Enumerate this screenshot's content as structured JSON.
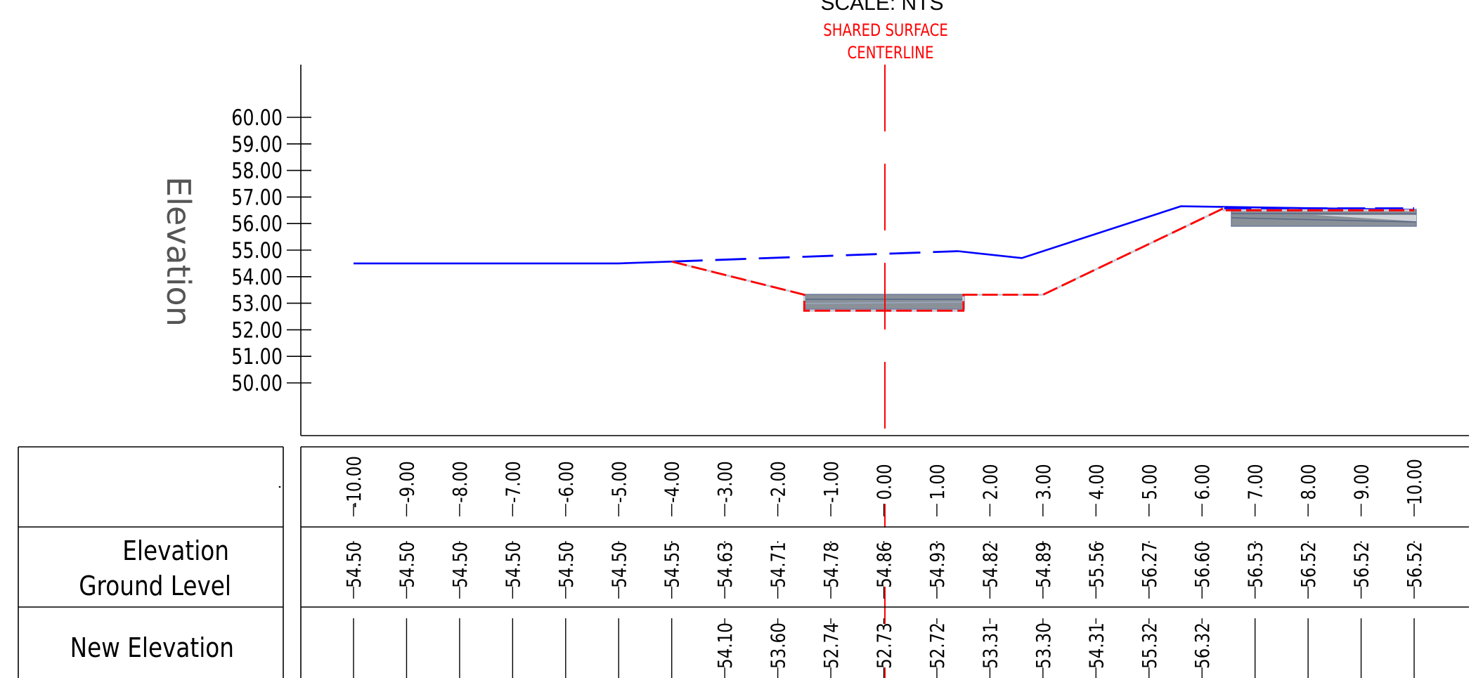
{
  "drawing": {
    "scale_label": "SCALE: NTS",
    "centerline_label_line1": "SHARED SURFACE",
    "centerline_label_line2": "CENTERLINE",
    "y_axis_title": "Elevation",
    "row_label_ground_1": "Elevation",
    "row_label_ground_2": "Ground Level",
    "row_label_new": "New Elevation",
    "colors": {
      "existing_ground": "#0000ff",
      "proposed_grade": "#ff0000",
      "centerline": "#ff0000",
      "surface_fill": "#8a9098",
      "linework": "#000000"
    }
  },
  "chart_data": {
    "type": "line",
    "title": "",
    "xlabel": "",
    "ylabel": "Elevation",
    "xlim": [
      -10,
      10
    ],
    "ylim": [
      50,
      60
    ],
    "y_ticks": [
      "60.00",
      "59.00",
      "58.00",
      "57.00",
      "56.00",
      "55.00",
      "54.00",
      "53.00",
      "52.00",
      "51.00",
      "50.00"
    ],
    "offsets": [
      "-10.00",
      "-9.00",
      "-8.00",
      "-7.00",
      "-6.00",
      "-5.00",
      "-4.00",
      "-3.00",
      "-2.00",
      "-1.00",
      "0.00",
      "1.00",
      "2.00",
      "3.00",
      "4.00",
      "5.00",
      "6.00",
      "7.00",
      "8.00",
      "9.00",
      "10.00"
    ],
    "ground_level": [
      "54.50",
      "54.50",
      "54.50",
      "54.50",
      "54.50",
      "54.50",
      "54.55",
      "54.63",
      "54.71",
      "54.78",
      "54.86",
      "54.93",
      "54.82",
      "54.89",
      "55.56",
      "56.27",
      "56.60",
      "56.53",
      "56.52",
      "56.52",
      "56.52"
    ],
    "new_elevation": [
      "",
      "",
      "",
      "",
      "",
      "",
      "",
      "54.10",
      "53.60",
      "52.74",
      "52.73",
      "52.72",
      "53.31",
      "53.30",
      "54.31",
      "55.32",
      "56.32",
      "",
      "",
      "",
      ""
    ],
    "series": [
      {
        "x": [
          -10,
          -5,
          -4,
          0,
          1.4,
          2.6,
          5.6,
          10
        ],
        "values": [
          54.5,
          54.5,
          54.57,
          54.86,
          54.96,
          54.7,
          56.65,
          56.52
        ]
      },
      {
        "x": [
          -4,
          -1.5,
          -1.5,
          1.5,
          1.5,
          3.0,
          6.4,
          6.4,
          10
        ],
        "values": [
          54.57,
          53.32,
          52.72,
          52.72,
          53.32,
          53.32,
          56.57,
          56.5,
          56.5
        ]
      }
    ],
    "centerline_x": 0,
    "grid": false
  }
}
